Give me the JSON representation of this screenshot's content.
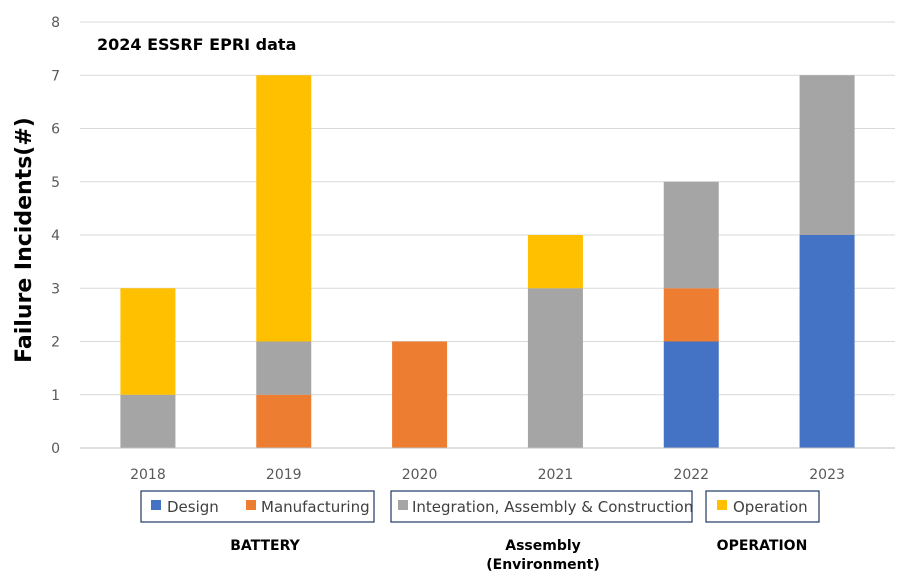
{
  "chart_data": {
    "type": "bar",
    "stacked": true,
    "title": "2024 ESSRF EPRI data",
    "xlabel": "",
    "ylabel": "Failure Incidents(#)",
    "ylim": [
      0,
      8
    ],
    "yticks": [
      0,
      1,
      2,
      3,
      4,
      5,
      6,
      7,
      8
    ],
    "grid": true,
    "categories": [
      "2018",
      "2019",
      "2020",
      "2021",
      "2022",
      "2023"
    ],
    "series": [
      {
        "name": "Design",
        "color": "#4472C4",
        "values": [
          0,
          0,
          0,
          0,
          2,
          4
        ]
      },
      {
        "name": "Manufacturing",
        "color": "#ED7D31",
        "values": [
          0,
          1,
          2,
          0,
          1,
          0
        ]
      },
      {
        "name": "Integration, Assembly & Construction",
        "color": "#A5A5A5",
        "values": [
          1,
          1,
          0,
          3,
          2,
          3
        ]
      },
      {
        "name": "Operation",
        "color": "#FFC000",
        "values": [
          2,
          5,
          0,
          1,
          0,
          0
        ]
      }
    ],
    "legend_position": "bottom",
    "legend_groups": [
      {
        "items": [
          0,
          1
        ],
        "label": "BATTERY"
      },
      {
        "items": [
          2
        ],
        "label": "Assembly\n(Environment)"
      },
      {
        "items": [
          3
        ],
        "label": "OPERATION"
      }
    ]
  }
}
